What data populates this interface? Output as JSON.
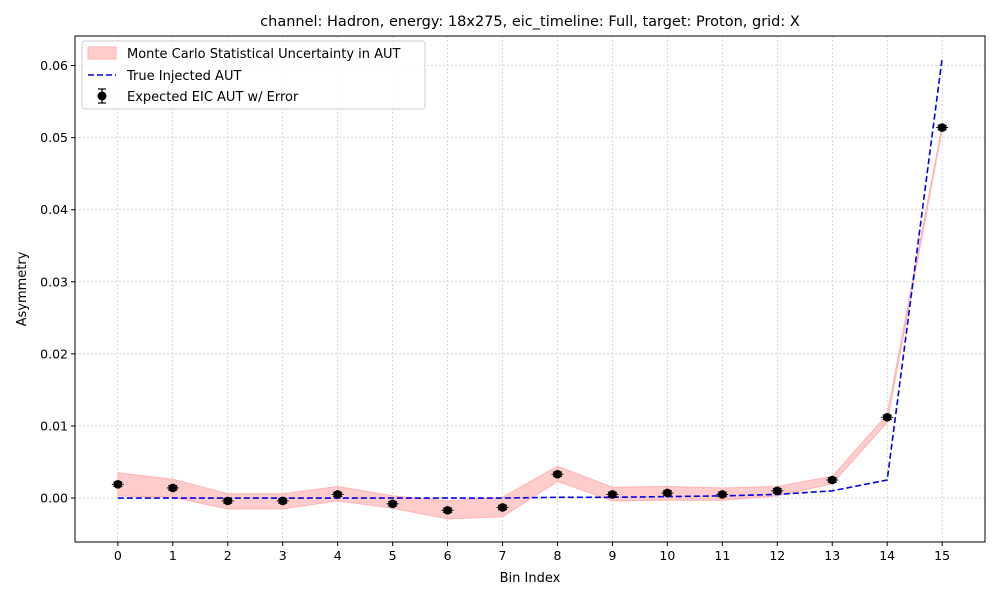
{
  "chart_data": {
    "type": "line",
    "title": "channel: Hadron, energy: 18x275, eic_timeline: Full, target: Proton, grid: X",
    "xlabel": "Bin Index",
    "ylabel": "Asymmetry",
    "xlim": [
      -0.78,
      15.78
    ],
    "ylim": [
      -0.0061,
      0.0641
    ],
    "xticks": [
      0,
      1,
      2,
      3,
      4,
      5,
      6,
      7,
      8,
      9,
      10,
      11,
      12,
      13,
      14,
      15
    ],
    "xtick_labels": [
      "0",
      "1",
      "2",
      "3",
      "4",
      "5",
      "6",
      "7",
      "8",
      "9",
      "10",
      "11",
      "12",
      "13",
      "14",
      "15"
    ],
    "yticks": [
      0.0,
      0.01,
      0.02,
      0.03,
      0.04,
      0.05,
      0.06
    ],
    "ytick_labels": [
      "0.00",
      "0.01",
      "0.02",
      "0.03",
      "0.04",
      "0.05",
      "0.06"
    ],
    "grid": true,
    "legend_position": "top-left",
    "colors": {
      "band": "#ff9999",
      "band_edge": "#ffb3b3",
      "true_line": "#0000ee",
      "points": "#000000"
    },
    "x": [
      0,
      1,
      2,
      3,
      4,
      5,
      6,
      7,
      8,
      9,
      10,
      11,
      12,
      13,
      14,
      15
    ],
    "series": [
      {
        "name": "Monte Carlo Statistical Uncertainty in AUT",
        "kind": "band",
        "lower": [
          0.0003,
          0.0001,
          -0.0015,
          -0.0015,
          -0.0004,
          -0.0014,
          -0.0029,
          -0.0026,
          0.0023,
          -0.0004,
          -0.0003,
          -0.0003,
          0.0003,
          0.002,
          0.0105,
          0.0511
        ],
        "upper": [
          0.0035,
          0.0026,
          0.0006,
          0.0006,
          0.0016,
          0.0003,
          -0.0004,
          0.0001,
          0.0044,
          0.0015,
          0.0016,
          0.0014,
          0.0016,
          0.003,
          0.0116,
          0.0517
        ]
      },
      {
        "name": "True Injected AUT",
        "kind": "dashed-line",
        "values": [
          0.0,
          0.0,
          0.0,
          0.0,
          0.0,
          0.0,
          0.0,
          0.0,
          0.0001,
          0.0001,
          0.0002,
          0.0003,
          0.0005,
          0.001,
          0.0025,
          0.061
        ]
      },
      {
        "name": "Expected EIC AUT w/ Error",
        "kind": "errorbar",
        "values": [
          0.0019,
          0.0014,
          -0.0004,
          -0.0004,
          0.0005,
          -0.0008,
          -0.0017,
          -0.0013,
          0.0033,
          0.0005,
          0.0007,
          0.0005,
          0.001,
          0.0025,
          0.0112,
          0.0514
        ],
        "errors": [
          0.0003,
          0.0003,
          0.0003,
          0.0003,
          0.0003,
          0.0003,
          0.0003,
          0.0003,
          0.0003,
          0.0003,
          0.0003,
          0.0003,
          0.0003,
          0.0003,
          0.0003,
          0.0003
        ]
      }
    ]
  }
}
